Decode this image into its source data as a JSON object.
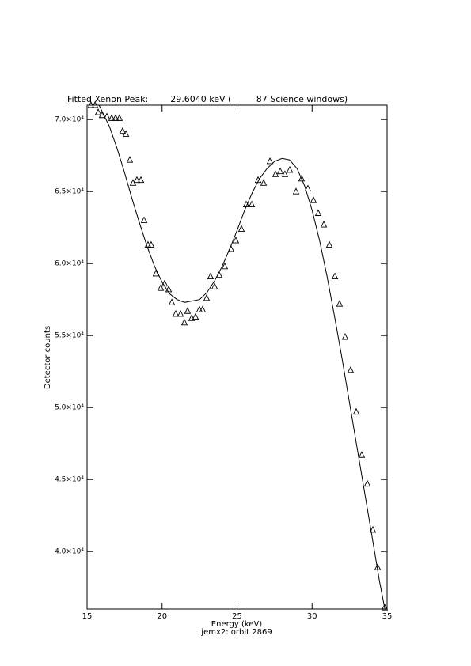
{
  "chart_data": {
    "type": "scatter",
    "title": "Fitted Xenon Peak:        29.6040 keV (         87 Science windows)",
    "x_label": "Energy (keV)",
    "subtitle": "jemx2: orbit 2869",
    "y_label": "Detector counts",
    "xlim": [
      15,
      35
    ],
    "ylim": [
      36000,
      71000
    ],
    "xticks": [
      15,
      20,
      25,
      30,
      35
    ],
    "yticks": [
      {
        "value": 40000,
        "label": "4.0×10⁴"
      },
      {
        "value": 45000,
        "label": "4.5×10⁴"
      },
      {
        "value": 50000,
        "label": "5.0×10⁴"
      },
      {
        "value": 55000,
        "label": "5.5×10⁴"
      },
      {
        "value": 60000,
        "label": "6.0×10⁴"
      },
      {
        "value": 65000,
        "label": "6.5×10⁴"
      },
      {
        "value": 70000,
        "label": "7.0×10⁴"
      }
    ],
    "color": "#000000",
    "series": [
      {
        "style": "triangles",
        "x": [
          15.26,
          15.53,
          15.74,
          16.0,
          16.32,
          16.64,
          16.9,
          17.16,
          17.37,
          17.59,
          17.85,
          18.06,
          18.32,
          18.59,
          18.8,
          19.06,
          19.27,
          19.59,
          19.91,
          20.17,
          20.44,
          20.65,
          20.91,
          21.23,
          21.49,
          21.7,
          21.97,
          22.23,
          22.49,
          22.7,
          22.97,
          23.23,
          23.5,
          23.81,
          24.18,
          24.6,
          24.92,
          25.29,
          25.61,
          25.98,
          26.4,
          26.77,
          27.19,
          27.56,
          27.88,
          28.19,
          28.51,
          28.93,
          29.3,
          29.72,
          30.09,
          30.41,
          30.78,
          31.15,
          31.52,
          31.83,
          32.2,
          32.57,
          32.94,
          33.31,
          33.68,
          34.05,
          34.37,
          34.84
        ],
        "values": [
          71000,
          71000,
          70500,
          70300,
          70200,
          70100,
          70100,
          70100,
          69200,
          69000,
          67200,
          65600,
          65800,
          65800,
          63000,
          61300,
          61300,
          59300,
          58300,
          58600,
          58200,
          57300,
          56500,
          56500,
          55900,
          56700,
          56200,
          56300,
          56800,
          56800,
          57600,
          59100,
          58400,
          59200,
          59800,
          61000,
          61600,
          62400,
          64100,
          64100,
          65800,
          65600,
          67100,
          66200,
          66400,
          66200,
          66500,
          65000,
          65900,
          65200,
          64400,
          63500,
          62700,
          61300,
          59100,
          57200,
          54900,
          52600,
          49700,
          46700,
          44700,
          41500,
          38900,
          36100
        ]
      },
      {
        "style": "line",
        "x": [
          15.8,
          16.5,
          17,
          17.5,
          18,
          18.5,
          19,
          19.5,
          20,
          20.5,
          21,
          21.5,
          22,
          22.5,
          23,
          23.5,
          24,
          24.5,
          25,
          25.5,
          26,
          26.5,
          27,
          27.5,
          28,
          28.5,
          29,
          29.5,
          30,
          30.5,
          31,
          31.5,
          32,
          32.5,
          33,
          33.5,
          34,
          34.5,
          34.85
        ],
        "values": [
          71000,
          69500,
          68000,
          66300,
          64500,
          62800,
          61200,
          59800,
          58700,
          57900,
          57500,
          57300,
          57400,
          57500,
          58000,
          58800,
          59800,
          61000,
          62300,
          63700,
          64900,
          65900,
          66600,
          67100,
          67300,
          67200,
          66600,
          65400,
          63700,
          61600,
          59100,
          56300,
          53400,
          50300,
          47200,
          44100,
          41000,
          37900,
          36000
        ]
      }
    ]
  }
}
